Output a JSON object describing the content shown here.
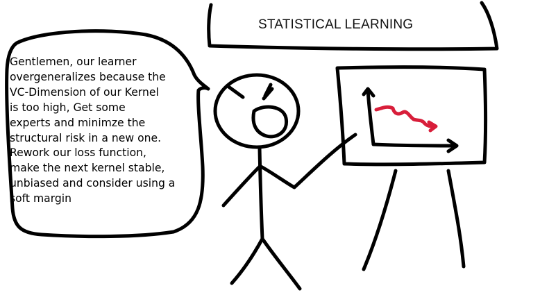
{
  "banner": {
    "title": "STATISTICAL LEARNING"
  },
  "speech_bubble": {
    "lines": [
      "Gentlemen, our learner",
      "overgeneralizes because the",
      "VC-Dimension of our Kernel",
      "is too high, Get some",
      "experts and minimze the",
      "structural risk in a new one.",
      "Rework our loss function,",
      "make the next kernel stable,",
      "unbiased and consider using a",
      "soft margin"
    ]
  },
  "colors": {
    "ink": "#000000",
    "trend_line": "#d81e3a",
    "background": "#ffffff"
  }
}
